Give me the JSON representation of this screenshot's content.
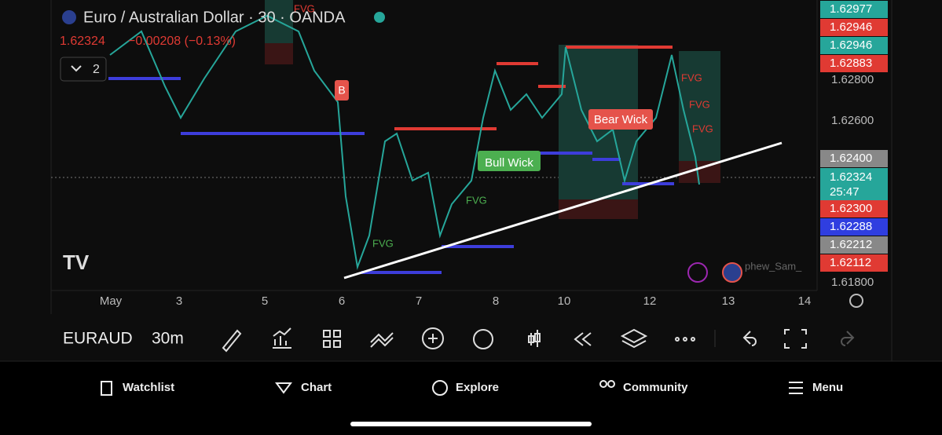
{
  "header": {
    "symbol": "Euro / Australian Dollar · 30 · OANDA",
    "price": "1.62324",
    "change": "−0.00208 (−0.13%)",
    "indicators": "2"
  },
  "price_axis": {
    "labels": [
      "1.62800",
      "1.62600",
      "1.61800"
    ],
    "badges": [
      "1.62977",
      "1.62946",
      "1.62946",
      "1.62883",
      "1.62400",
      "1.62324",
      "25:47",
      "1.62300",
      "1.62288",
      "1.62212",
      "1.62112"
    ]
  },
  "time_axis": [
    "May",
    "3",
    "5",
    "6",
    "7",
    "8",
    "10",
    "12",
    "13",
    "14"
  ],
  "annotations": {
    "buy": "B",
    "fvg": [
      "FVG",
      "FVG",
      "FVG",
      "FVG",
      "FVG",
      "FVG"
    ],
    "bull_wick": "Bull Wick",
    "bear_wick": "Bear Wick",
    "watermark": "phew_Sam_"
  },
  "toolbar": {
    "symbol": "EURAUD",
    "interval": "30m"
  },
  "nav": [
    "Watchlist",
    "Chart",
    "Explore",
    "Community",
    "Menu"
  ]
}
